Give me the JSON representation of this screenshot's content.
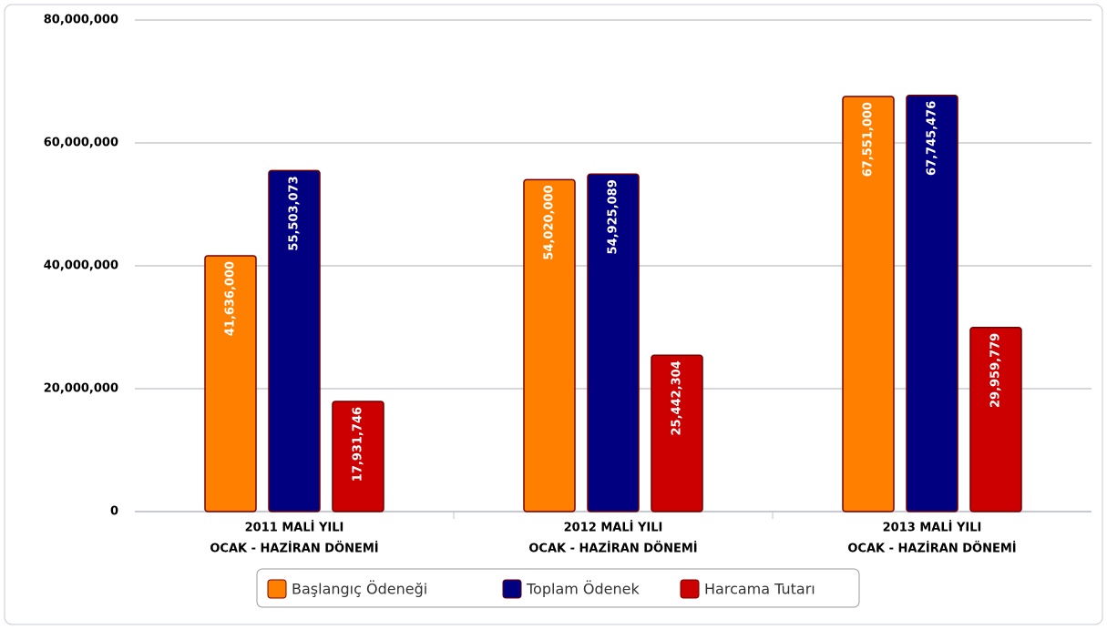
{
  "chart_data": {
    "type": "bar",
    "categories": [
      [
        "2011 MALİ YILI",
        "OCAK - HAZİRAN DÖNEMİ"
      ],
      [
        "2012 MALİ YILI",
        "OCAK - HAZİRAN DÖNEMİ"
      ],
      [
        "2013 MALİ YILI",
        "OCAK - HAZİRAN DÖNEMİ"
      ]
    ],
    "series": [
      {
        "name": "Başlangıç Ödeneği",
        "color": "#ff8000",
        "values": [
          41636000,
          54020000,
          67551000
        ],
        "value_labels": [
          "41,636,000",
          "54,020,000",
          "67,551,000"
        ]
      },
      {
        "name": "Toplam Ödenek",
        "color": "#000080",
        "values": [
          55503073,
          54925089,
          67745476
        ],
        "value_labels": [
          "55,503,073",
          "54,925,089",
          "67,745,476"
        ]
      },
      {
        "name": "Harcama Tutarı",
        "color": "#cc0000",
        "values": [
          17931746,
          25442304,
          29959779
        ],
        "value_labels": [
          "17,931,746",
          "25,442,304",
          "29,959,779"
        ]
      }
    ],
    "ylim": [
      0,
      80000000
    ],
    "yticks": [
      0,
      {
        "value": 20000000,
        "label": "20,000,000"
      },
      {
        "value": 40000000,
        "label": "40,000,000"
      },
      {
        "value": 60000000,
        "label": "60,000,000"
      },
      {
        "value": 80000000,
        "label": "80,000,000"
      }
    ],
    "grid": true,
    "legend": "bottom"
  }
}
